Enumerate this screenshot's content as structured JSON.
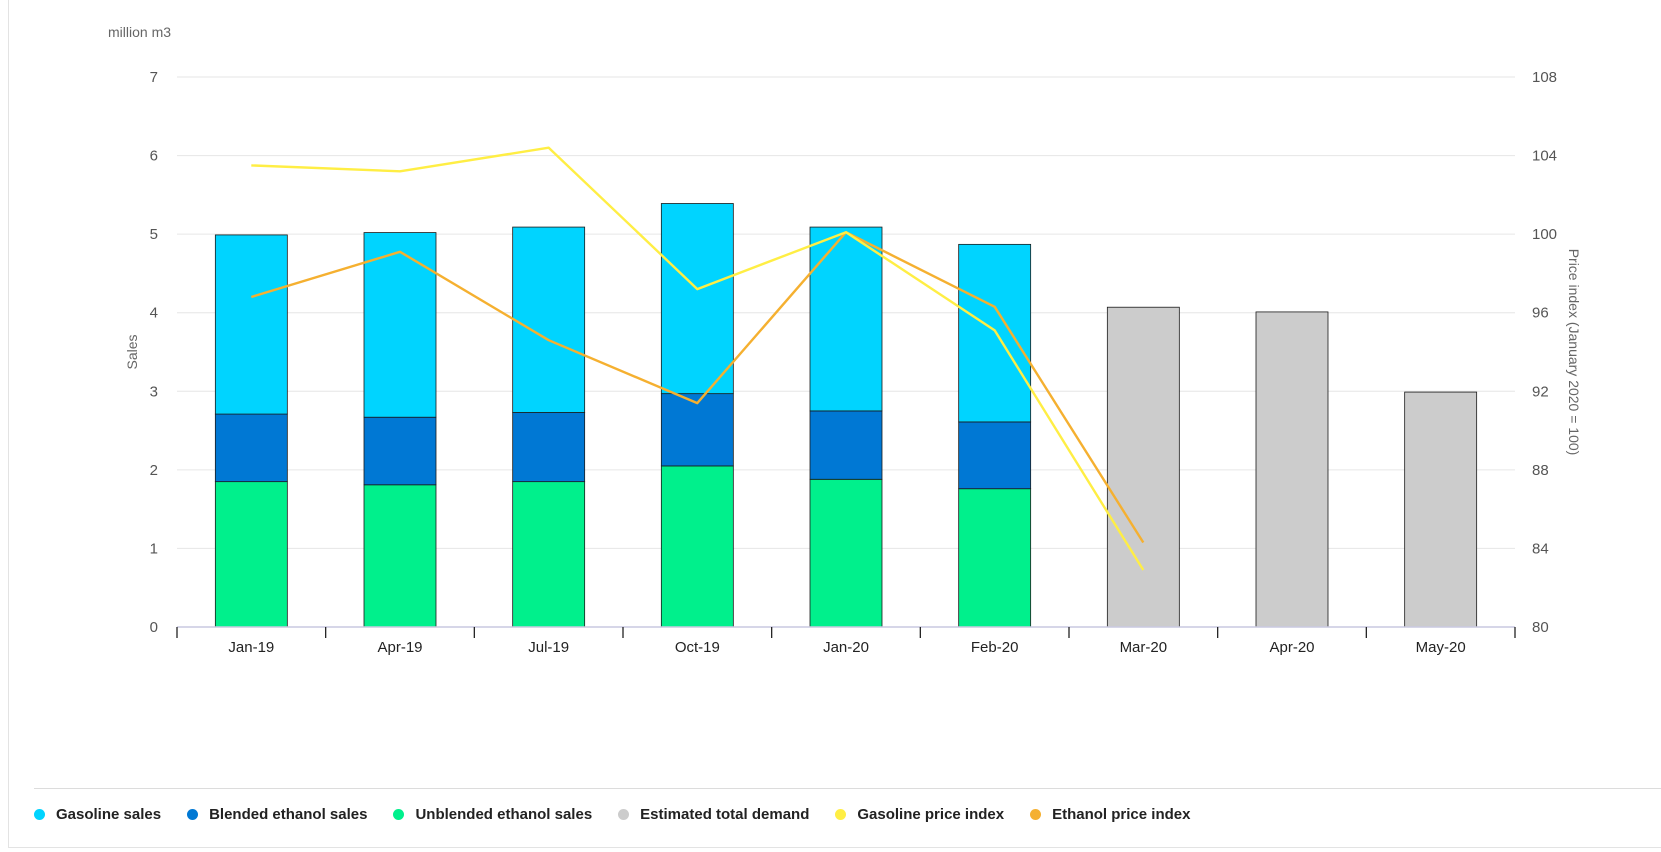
{
  "colors": {
    "gasoline_sales": "#00d4ff",
    "blended_ethanol": "#0078d4",
    "unblended_ethanol": "#00f08c",
    "estimated_demand": "#cccccc",
    "gasoline_price": "#ffee44",
    "ethanol_price": "#f5b030",
    "grid": "#e6e6e6"
  },
  "chart_data": {
    "type": "bar",
    "unit_label": "million m3",
    "ylabel": "Sales",
    "y2label": "Price index (January 2020 = 100)",
    "ylim": [
      0,
      7
    ],
    "y2lim": [
      80,
      108
    ],
    "yticks": [
      "0",
      "1",
      "2",
      "3",
      "4",
      "5",
      "6",
      "7"
    ],
    "y2ticks": [
      "80",
      "84",
      "88",
      "92",
      "96",
      "100",
      "104",
      "108"
    ],
    "grid": true,
    "legend_position": "bottom",
    "categories": [
      "Jan-19",
      "Apr-19",
      "Jul-19",
      "Oct-19",
      "Jan-20",
      "Feb-20",
      "Mar-20",
      "Apr-20",
      "May-20"
    ],
    "series": [
      {
        "name": "Gasoline sales",
        "key": "gasoline_sales",
        "kind": "stacked-bar",
        "values": [
          2.28,
          2.35,
          2.36,
          2.42,
          2.34,
          2.26,
          null,
          null,
          null
        ]
      },
      {
        "name": "Blended ethanol sales",
        "key": "blended_ethanol",
        "kind": "stacked-bar",
        "values": [
          0.86,
          0.86,
          0.88,
          0.92,
          0.87,
          0.85,
          null,
          null,
          null
        ]
      },
      {
        "name": "Unblended ethanol sales",
        "key": "unblended_ethanol",
        "kind": "stacked-bar",
        "values": [
          1.85,
          1.81,
          1.85,
          2.05,
          1.88,
          1.76,
          null,
          null,
          null
        ]
      },
      {
        "name": "Estimated total demand",
        "key": "estimated_demand",
        "kind": "bar",
        "values": [
          null,
          null,
          null,
          null,
          null,
          null,
          4.07,
          4.01,
          2.99
        ]
      },
      {
        "name": "Gasoline price index",
        "key": "gasoline_price",
        "kind": "line",
        "axis": "right",
        "values": [
          103.5,
          103.2,
          104.4,
          97.2,
          100.1,
          95.1,
          82.9,
          null,
          null
        ]
      },
      {
        "name": "Ethanol price index",
        "key": "ethanol_price",
        "kind": "line",
        "axis": "right",
        "values": [
          96.8,
          99.1,
          94.6,
          91.4,
          100.1,
          96.3,
          84.3,
          null,
          null
        ]
      }
    ]
  },
  "legend": [
    {
      "label": "Gasoline sales",
      "color_key": "gasoline_sales"
    },
    {
      "label": "Blended ethanol sales",
      "color_key": "blended_ethanol"
    },
    {
      "label": "Unblended ethanol sales",
      "color_key": "unblended_ethanol"
    },
    {
      "label": "Estimated total demand",
      "color_key": "estimated_demand"
    },
    {
      "label": "Gasoline price index",
      "color_key": "gasoline_price"
    },
    {
      "label": "Ethanol price index",
      "color_key": "ethanol_price"
    }
  ]
}
